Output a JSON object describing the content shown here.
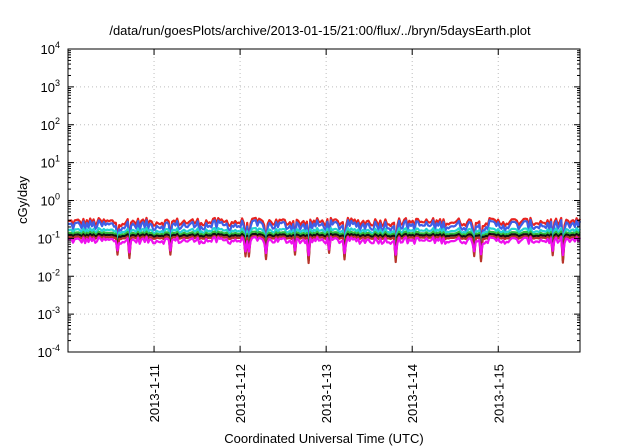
{
  "chart_data": {
    "type": "line",
    "title": "/data/run/goesPlots/archive/2013-01-15/21:00/flux/../bryn/5daysEarth.plot",
    "xlabel": "Coordinated Universal Time (UTC)",
    "ylabel": "cGy/day",
    "y_scale": "log",
    "ylim": [
      0.0001,
      10000
    ],
    "xlim": [
      0,
      5.95
    ],
    "x_start_date": "2013-01-10 02:00 UTC",
    "y_ticks": [
      {
        "base": "10",
        "exp": "-4",
        "value": 0.0001
      },
      {
        "base": "10",
        "exp": "-3",
        "value": 0.001
      },
      {
        "base": "10",
        "exp": "-2",
        "value": 0.01
      },
      {
        "base": "10",
        "exp": "-1",
        "value": 0.1
      },
      {
        "base": "10",
        "exp": "0",
        "value": 1
      },
      {
        "base": "10",
        "exp": "1",
        "value": 10
      },
      {
        "base": "10",
        "exp": "2",
        "value": 100
      },
      {
        "base": "10",
        "exp": "3",
        "value": 1000
      },
      {
        "base": "10",
        "exp": "4",
        "value": 10000
      }
    ],
    "x_ticks": [
      {
        "label": "2013-1-11",
        "x": 1.0
      },
      {
        "label": "2013-1-12",
        "x": 2.0
      },
      {
        "label": "2013-1-13",
        "x": 3.0
      },
      {
        "label": "2013-1-14",
        "x": 4.0
      },
      {
        "label": "2013-1-15",
        "x": 5.0
      }
    ],
    "grid": true,
    "series": [
      {
        "color": "#e8231f",
        "base": 0.27,
        "amp": 0.22,
        "dip": 0.55
      },
      {
        "color": "#3f5fe6",
        "base": 0.22,
        "amp": 0.28,
        "dip": 0.5
      },
      {
        "color": "#22d3d3",
        "base": 0.16,
        "amp": 0.14,
        "dip": 0.55
      },
      {
        "color": "#2fbe3a",
        "base": 0.135,
        "amp": 0.1,
        "dip": 0.6
      },
      {
        "color": "#111111",
        "base": 0.12,
        "amp": 0.08,
        "dip": 0.6
      },
      {
        "color": "#b8342a",
        "base": 0.105,
        "amp": 0.08,
        "dip": 0.6
      },
      {
        "color": "#ee10ee",
        "base": 0.088,
        "amp": 0.18,
        "dip": 0.35
      }
    ]
  }
}
